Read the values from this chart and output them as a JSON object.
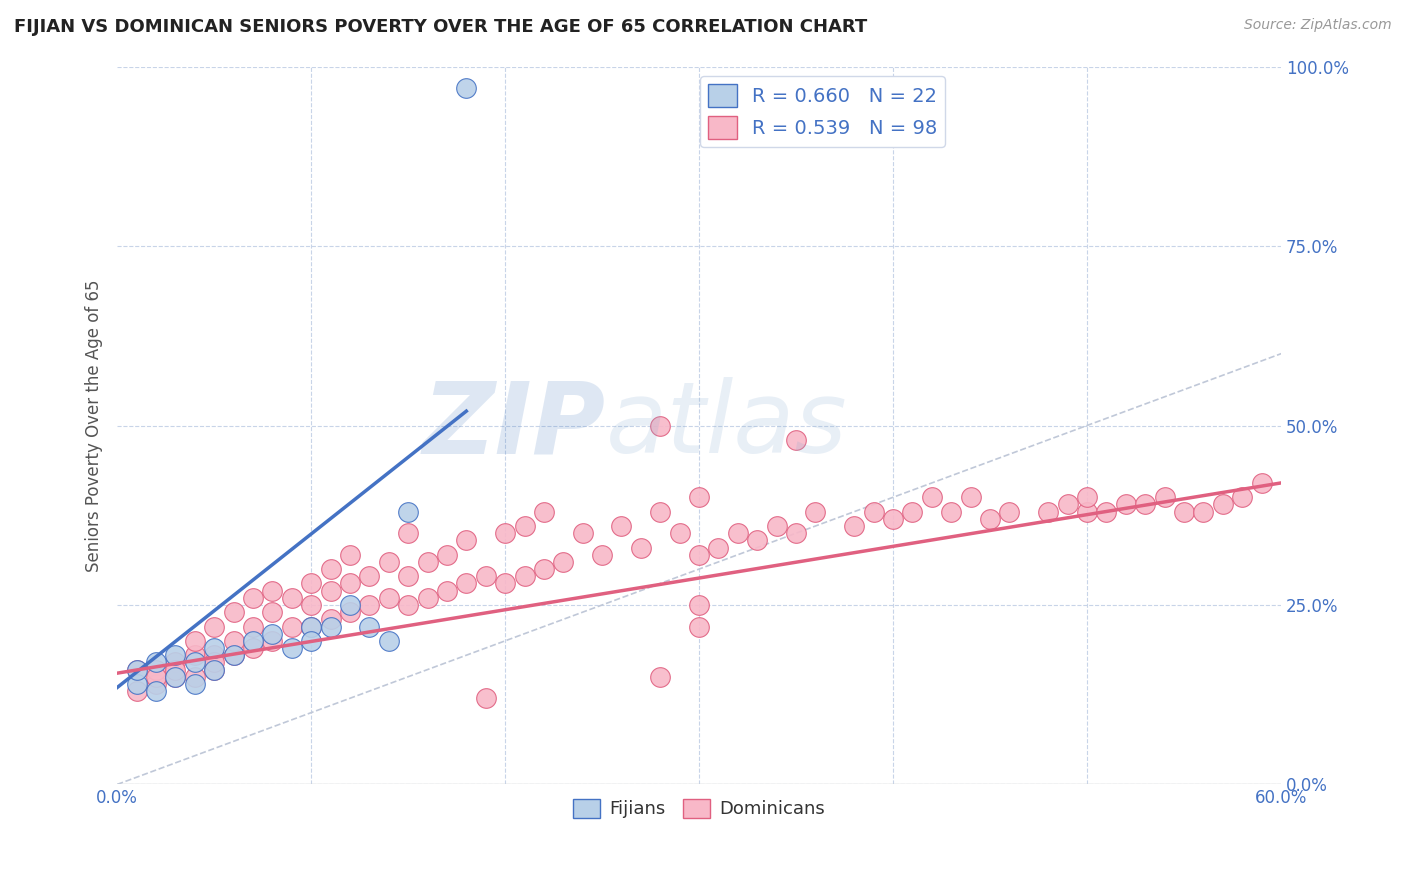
{
  "title": "FIJIAN VS DOMINICAN SENIORS POVERTY OVER THE AGE OF 65 CORRELATION CHART",
  "source_text": "Source: ZipAtlas.com",
  "ylabel": "Seniors Poverty Over the Age of 65",
  "xlim": [
    0.0,
    0.6
  ],
  "ylim": [
    0.0,
    1.0
  ],
  "xtick_positions": [
    0.0,
    0.6
  ],
  "xtick_labels": [
    "0.0%",
    "60.0%"
  ],
  "ytick_positions": [
    0.0,
    0.25,
    0.5,
    0.75,
    1.0
  ],
  "ytick_labels": [
    "0.0%",
    "25.0%",
    "50.0%",
    "75.0%",
    "100.0%"
  ],
  "fijian_R": 0.66,
  "fijian_N": 22,
  "dominican_R": 0.539,
  "dominican_N": 98,
  "fijian_fill_color": "#b8d0e8",
  "dominican_fill_color": "#f8b8c8",
  "fijian_edge_color": "#4472c4",
  "dominican_edge_color": "#e06080",
  "fijian_line_color": "#4472c4",
  "dominican_line_color": "#e06080",
  "background_color": "#ffffff",
  "grid_color": "#c8d4e8",
  "ref_line_color": "#c0c8d8",
  "fijian_scatter_x": [
    0.01,
    0.01,
    0.02,
    0.02,
    0.03,
    0.03,
    0.04,
    0.04,
    0.05,
    0.05,
    0.06,
    0.07,
    0.08,
    0.09,
    0.1,
    0.1,
    0.11,
    0.12,
    0.13,
    0.14,
    0.15,
    0.18
  ],
  "fijian_scatter_y": [
    0.14,
    0.16,
    0.13,
    0.17,
    0.15,
    0.18,
    0.14,
    0.17,
    0.16,
    0.19,
    0.18,
    0.2,
    0.21,
    0.19,
    0.22,
    0.2,
    0.22,
    0.25,
    0.22,
    0.2,
    0.38,
    0.97
  ],
  "dominican_scatter_x": [
    0.01,
    0.01,
    0.02,
    0.02,
    0.02,
    0.03,
    0.03,
    0.03,
    0.04,
    0.04,
    0.04,
    0.05,
    0.05,
    0.05,
    0.05,
    0.06,
    0.06,
    0.06,
    0.07,
    0.07,
    0.07,
    0.08,
    0.08,
    0.08,
    0.09,
    0.09,
    0.1,
    0.1,
    0.1,
    0.11,
    0.11,
    0.11,
    0.12,
    0.12,
    0.12,
    0.13,
    0.13,
    0.14,
    0.14,
    0.15,
    0.15,
    0.15,
    0.16,
    0.16,
    0.17,
    0.17,
    0.18,
    0.18,
    0.19,
    0.2,
    0.2,
    0.21,
    0.21,
    0.22,
    0.22,
    0.23,
    0.24,
    0.25,
    0.26,
    0.27,
    0.28,
    0.28,
    0.29,
    0.3,
    0.3,
    0.31,
    0.32,
    0.33,
    0.34,
    0.35,
    0.35,
    0.36,
    0.38,
    0.39,
    0.4,
    0.41,
    0.42,
    0.43,
    0.44,
    0.45,
    0.46,
    0.48,
    0.49,
    0.5,
    0.5,
    0.51,
    0.52,
    0.53,
    0.54,
    0.55,
    0.56,
    0.57,
    0.58,
    0.59,
    0.28,
    0.3,
    0.19,
    0.3
  ],
  "dominican_scatter_y": [
    0.13,
    0.16,
    0.14,
    0.16,
    0.15,
    0.15,
    0.17,
    0.16,
    0.18,
    0.15,
    0.2,
    0.16,
    0.18,
    0.17,
    0.22,
    0.18,
    0.2,
    0.24,
    0.19,
    0.22,
    0.26,
    0.2,
    0.24,
    0.27,
    0.22,
    0.26,
    0.22,
    0.25,
    0.28,
    0.23,
    0.27,
    0.3,
    0.24,
    0.28,
    0.32,
    0.25,
    0.29,
    0.26,
    0.31,
    0.25,
    0.29,
    0.35,
    0.26,
    0.31,
    0.27,
    0.32,
    0.28,
    0.34,
    0.29,
    0.28,
    0.35,
    0.29,
    0.36,
    0.3,
    0.38,
    0.31,
    0.35,
    0.32,
    0.36,
    0.33,
    0.38,
    0.5,
    0.35,
    0.32,
    0.4,
    0.33,
    0.35,
    0.34,
    0.36,
    0.35,
    0.48,
    0.38,
    0.36,
    0.38,
    0.37,
    0.38,
    0.4,
    0.38,
    0.4,
    0.37,
    0.38,
    0.38,
    0.39,
    0.38,
    0.4,
    0.38,
    0.39,
    0.39,
    0.4,
    0.38,
    0.38,
    0.39,
    0.4,
    0.42,
    0.15,
    0.22,
    0.12,
    0.25
  ],
  "fijian_line_x": [
    0.0,
    0.18
  ],
  "fijian_line_y": [
    0.135,
    0.52
  ],
  "dominican_line_x": [
    0.0,
    0.6
  ],
  "dominican_line_y": [
    0.155,
    0.42
  ],
  "ref_line_x": [
    0.0,
    1.0
  ],
  "ref_line_y": [
    0.0,
    1.0
  ]
}
